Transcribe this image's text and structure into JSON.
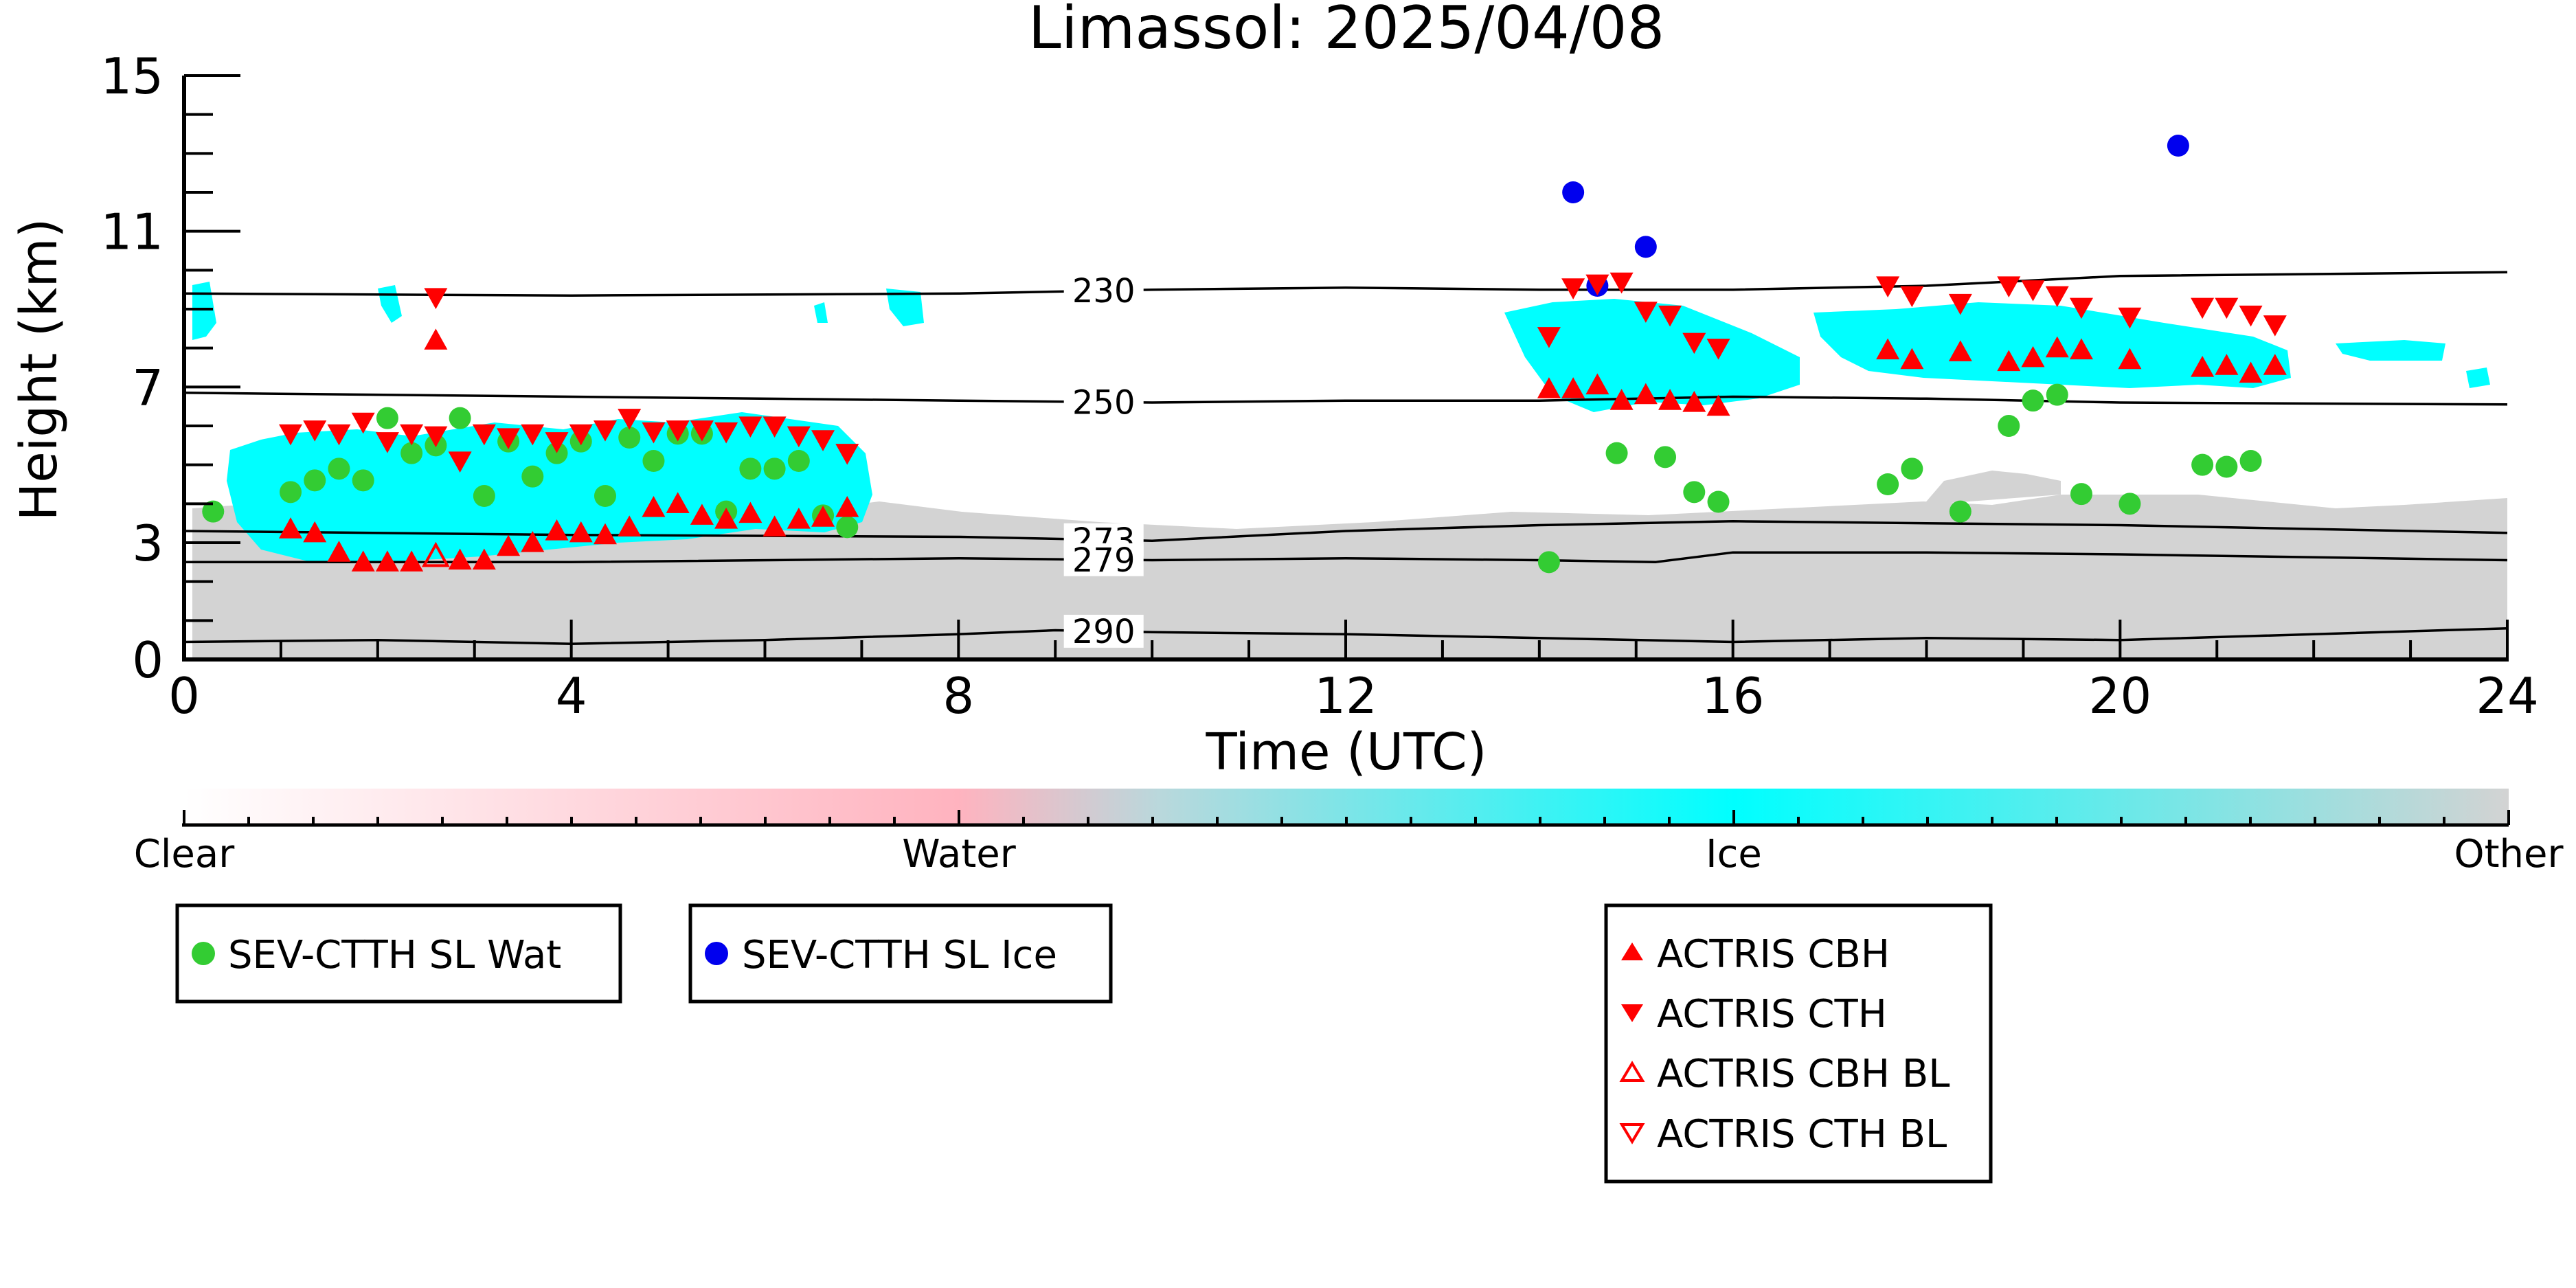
{
  "chart_data": {
    "type": "scatter",
    "title": "Limassol: 2025/04/08",
    "xlabel": "Time (UTC)",
    "ylabel": "Height (km)",
    "xlim": [
      0,
      24
    ],
    "ylim": [
      0,
      15
    ],
    "xticks": [
      0,
      4,
      8,
      12,
      16,
      20,
      24
    ],
    "yticks": [
      0,
      3,
      7,
      11,
      15
    ],
    "xtick_labels": [
      "0",
      "4",
      "8",
      "12",
      "16",
      "20",
      "24"
    ],
    "ytick_labels": [
      "0",
      "3",
      "7",
      "11",
      "15"
    ],
    "grid": false,
    "isotherms": [
      {
        "label": "230",
        "points": [
          [
            0,
            9.4
          ],
          [
            4,
            9.35
          ],
          [
            8,
            9.4
          ],
          [
            10,
            9.5
          ],
          [
            12,
            9.55
          ],
          [
            14,
            9.5
          ],
          [
            16,
            9.5
          ],
          [
            18,
            9.6
          ],
          [
            20,
            9.85
          ],
          [
            24,
            9.95
          ]
        ]
      },
      {
        "label": "250",
        "points": [
          [
            0,
            6.85
          ],
          [
            4,
            6.75
          ],
          [
            8,
            6.65
          ],
          [
            10,
            6.6
          ],
          [
            12,
            6.65
          ],
          [
            14,
            6.65
          ],
          [
            16,
            6.75
          ],
          [
            18,
            6.7
          ],
          [
            20,
            6.6
          ],
          [
            24,
            6.55
          ]
        ]
      },
      {
        "label": "273",
        "points": [
          [
            0,
            3.3
          ],
          [
            4,
            3.2
          ],
          [
            8,
            3.15
          ],
          [
            10,
            3.05
          ],
          [
            12,
            3.3
          ],
          [
            14,
            3.45
          ],
          [
            16,
            3.55
          ],
          [
            18,
            3.5
          ],
          [
            20,
            3.45
          ],
          [
            24,
            3.25
          ]
        ]
      },
      {
        "label": "279",
        "points": [
          [
            0,
            2.5
          ],
          [
            4,
            2.5
          ],
          [
            8,
            2.6
          ],
          [
            10,
            2.55
          ],
          [
            12,
            2.6
          ],
          [
            14,
            2.55
          ],
          [
            15.2,
            2.5
          ],
          [
            16,
            2.75
          ],
          [
            18,
            2.75
          ],
          [
            20,
            2.7
          ],
          [
            24,
            2.55
          ]
        ]
      },
      {
        "label": "290",
        "points": [
          [
            0,
            0.45
          ],
          [
            2,
            0.5
          ],
          [
            4,
            0.4
          ],
          [
            6,
            0.5
          ],
          [
            8,
            0.65
          ],
          [
            9,
            0.75
          ],
          [
            10,
            0.7
          ],
          [
            12,
            0.65
          ],
          [
            14,
            0.55
          ],
          [
            16,
            0.45
          ],
          [
            18,
            0.55
          ],
          [
            20,
            0.5
          ],
          [
            24,
            0.8
          ]
        ]
      }
    ],
    "colorbar": {
      "labels": [
        "Clear",
        "Water",
        "Ice",
        "Other"
      ],
      "colors": [
        "#ffffff",
        "#ffb3bf",
        "#00ffff",
        "#d3d3d3"
      ]
    },
    "series": [
      {
        "name": "SEV-CTTH SL Wat",
        "marker": "circle",
        "color": "#33cc33",
        "points": [
          [
            0.3,
            3.8
          ],
          [
            1.1,
            4.3
          ],
          [
            1.35,
            4.6
          ],
          [
            1.6,
            4.9
          ],
          [
            1.85,
            4.6
          ],
          [
            2.1,
            6.2
          ],
          [
            2.35,
            5.3
          ],
          [
            2.6,
            5.5
          ],
          [
            2.85,
            6.2
          ],
          [
            3.1,
            4.2
          ],
          [
            3.35,
            5.6
          ],
          [
            3.6,
            4.7
          ],
          [
            3.85,
            5.3
          ],
          [
            4.1,
            5.6
          ],
          [
            4.35,
            4.2
          ],
          [
            4.6,
            5.7
          ],
          [
            4.85,
            5.1
          ],
          [
            5.1,
            5.8
          ],
          [
            5.35,
            5.8
          ],
          [
            5.6,
            3.8
          ],
          [
            5.85,
            4.9
          ],
          [
            6.1,
            4.9
          ],
          [
            6.35,
            5.1
          ],
          [
            6.6,
            3.7
          ],
          [
            6.85,
            3.4
          ],
          [
            14.1,
            2.5
          ],
          [
            14.8,
            5.3
          ],
          [
            15.3,
            5.2
          ],
          [
            15.6,
            4.3
          ],
          [
            15.85,
            4.05
          ],
          [
            17.6,
            4.5
          ],
          [
            17.85,
            4.9
          ],
          [
            18.35,
            3.8
          ],
          [
            18.85,
            6.0
          ],
          [
            19.1,
            6.65
          ],
          [
            19.35,
            6.8
          ],
          [
            19.6,
            4.25
          ],
          [
            20.1,
            4.0
          ],
          [
            20.85,
            5.0
          ],
          [
            21.1,
            4.95
          ],
          [
            21.35,
            5.1
          ]
        ]
      },
      {
        "name": "SEV-CTTH SL Ice",
        "marker": "circle",
        "color": "#0000ee",
        "points": [
          [
            14.35,
            12.0
          ],
          [
            14.6,
            9.6
          ],
          [
            15.1,
            10.6
          ],
          [
            20.6,
            13.2
          ]
        ]
      },
      {
        "name": "ACTRIS CBH",
        "marker": "triangle-up",
        "filled": true,
        "color": "#ff0000",
        "points": [
          [
            2.6,
            8.2
          ],
          [
            1.1,
            3.35
          ],
          [
            1.35,
            3.25
          ],
          [
            1.6,
            2.75
          ],
          [
            1.85,
            2.5
          ],
          [
            2.1,
            2.5
          ],
          [
            2.35,
            2.5
          ],
          [
            2.85,
            2.55
          ],
          [
            3.1,
            2.55
          ],
          [
            3.35,
            2.9
          ],
          [
            3.6,
            3.0
          ],
          [
            3.85,
            3.3
          ],
          [
            4.1,
            3.25
          ],
          [
            4.35,
            3.2
          ],
          [
            4.6,
            3.4
          ],
          [
            4.85,
            3.9
          ],
          [
            5.1,
            4.0
          ],
          [
            5.35,
            3.7
          ],
          [
            5.6,
            3.6
          ],
          [
            5.85,
            3.75
          ],
          [
            6.1,
            3.4
          ],
          [
            6.35,
            3.6
          ],
          [
            6.6,
            3.65
          ],
          [
            6.85,
            3.9
          ],
          [
            14.1,
            6.95
          ],
          [
            14.35,
            6.95
          ],
          [
            14.6,
            7.05
          ],
          [
            14.85,
            6.65
          ],
          [
            15.1,
            6.8
          ],
          [
            15.35,
            6.65
          ],
          [
            15.6,
            6.6
          ],
          [
            15.85,
            6.5
          ],
          [
            17.6,
            7.95
          ],
          [
            17.85,
            7.7
          ],
          [
            18.35,
            7.9
          ],
          [
            18.85,
            7.65
          ],
          [
            19.1,
            7.75
          ],
          [
            19.35,
            8.0
          ],
          [
            19.6,
            7.95
          ],
          [
            20.1,
            7.7
          ],
          [
            20.85,
            7.5
          ],
          [
            21.1,
            7.55
          ],
          [
            21.35,
            7.35
          ],
          [
            21.6,
            7.55
          ]
        ]
      },
      {
        "name": "ACTRIS CTH",
        "marker": "triangle-down",
        "filled": true,
        "color": "#ff0000",
        "points": [
          [
            2.6,
            9.3
          ],
          [
            1.1,
            5.8
          ],
          [
            1.35,
            5.9
          ],
          [
            1.6,
            5.8
          ],
          [
            1.85,
            6.1
          ],
          [
            2.1,
            5.6
          ],
          [
            2.35,
            5.8
          ],
          [
            2.6,
            5.75
          ],
          [
            2.85,
            5.1
          ],
          [
            3.1,
            5.8
          ],
          [
            3.35,
            5.7
          ],
          [
            3.6,
            5.8
          ],
          [
            3.85,
            5.6
          ],
          [
            4.1,
            5.8
          ],
          [
            4.35,
            5.9
          ],
          [
            4.6,
            6.2
          ],
          [
            4.85,
            5.85
          ],
          [
            5.1,
            5.9
          ],
          [
            5.35,
            5.9
          ],
          [
            5.6,
            5.85
          ],
          [
            5.85,
            6.0
          ],
          [
            6.1,
            6.0
          ],
          [
            6.35,
            5.75
          ],
          [
            6.6,
            5.65
          ],
          [
            6.85,
            5.3
          ],
          [
            14.1,
            8.3
          ],
          [
            14.35,
            9.55
          ],
          [
            14.6,
            9.65
          ],
          [
            14.85,
            9.7
          ],
          [
            15.1,
            8.95
          ],
          [
            15.35,
            8.85
          ],
          [
            15.6,
            8.15
          ],
          [
            15.85,
            8.0
          ],
          [
            17.6,
            9.6
          ],
          [
            17.85,
            9.35
          ],
          [
            18.35,
            9.15
          ],
          [
            18.85,
            9.6
          ],
          [
            19.1,
            9.5
          ],
          [
            19.35,
            9.35
          ],
          [
            19.6,
            9.05
          ],
          [
            20.1,
            8.8
          ],
          [
            20.85,
            9.05
          ],
          [
            21.1,
            9.05
          ],
          [
            21.35,
            8.85
          ],
          [
            21.6,
            8.6
          ]
        ]
      },
      {
        "name": "ACTRIS CBH BL",
        "marker": "triangle-up",
        "filled": false,
        "color": "#ff0000",
        "points": [
          [
            2.6,
            2.65
          ]
        ]
      },
      {
        "name": "ACTRIS CTH BL",
        "marker": "triangle-down",
        "filled": false,
        "color": "#ff0000",
        "points": []
      }
    ]
  }
}
